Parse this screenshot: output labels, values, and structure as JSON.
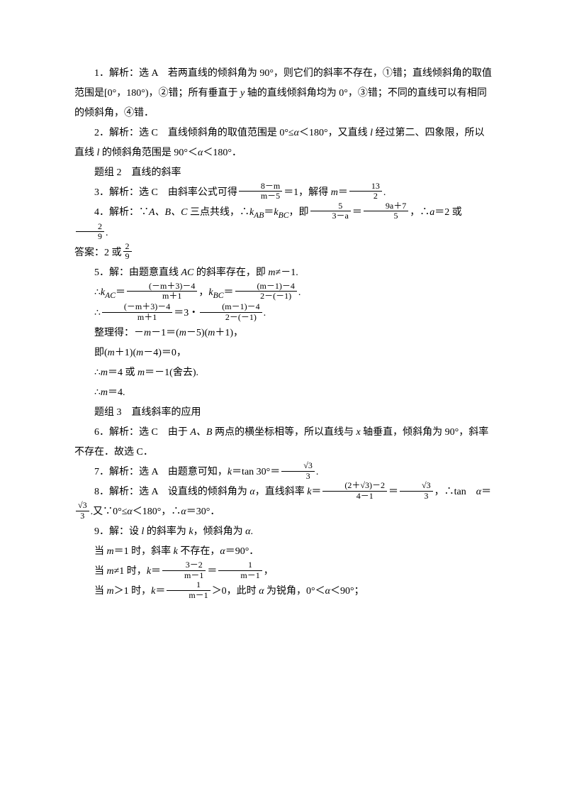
{
  "p1": {
    "a": "1．解析：选 A　若两直线的倾斜角为 90°，则它们的斜率不存在，①错；直线倾斜角的取值范围是[0°，180°)，②错；所有垂直于 ",
    "b": "y",
    "c": " 轴的直线倾斜角均为 0°，③错；不同的直线可以有相同的倾斜角，④错．"
  },
  "p2": {
    "a": "2．解析：选 C　直线倾斜角的取值范围是 0°≤",
    "b": "α",
    "c": "＜180°，又直线 ",
    "d": "l",
    "e": " 经过第二、四象限，所以直线 ",
    "f": "l",
    "g": " 的倾斜角范围是 90°＜",
    "h": "α",
    "i": "＜180°．"
  },
  "p3": "题组 2　直线的斜率",
  "p4": {
    "a": "3．解析：选 C　由斜率公式可得",
    "num1": "8－m",
    "den1": "m－5",
    "b": "＝1，解得 ",
    "c": "m",
    "d": "＝",
    "num2": "13",
    "den2": "2",
    "e": "."
  },
  "p5": {
    "a": "4．解析：∵",
    "b": "A、B、C",
    "c": " 三点共线，∴",
    "d": "k",
    "ab": "AB",
    "e": "＝",
    "f": "k",
    "bc": "BC",
    "g": "，即",
    "num1": "5",
    "den1": "3－a",
    "h": "＝",
    "num2": "9a＋7",
    "den2": "5",
    "i": "，∴",
    "j": "a",
    "k": "＝2 或",
    "num3": "2",
    "den3": "9",
    "l": "."
  },
  "p6": {
    "a": "答案：2 或",
    "num": "2",
    "den": "9"
  },
  "p7": {
    "a": "5．解：由题意直线 ",
    "b": "AC",
    "c": " 的斜率存在，即 ",
    "d": "m",
    "e": "≠－1."
  },
  "p8": {
    "a": "∴",
    "b": "k",
    "ac": "AC",
    "c": "＝",
    "num1": "(－m＋3)－4",
    "den1": "m＋1",
    "d": "，",
    "e": "k",
    "bc": "BC",
    "f": "＝",
    "num2": "(m－1)－4",
    "den2": "2－(－1)",
    "g": "."
  },
  "p9": {
    "a": "∴",
    "num1": "(－m＋3)－4",
    "den1": "m＋1",
    "b": "＝3・",
    "num2": "(m－1)－4",
    "den2": "2－(－1)",
    "c": "."
  },
  "p10": {
    "a": "整理得：－",
    "b": "m",
    "c": "－1＝(",
    "d": "m",
    "e": "－5)(",
    "f": "m",
    "g": "＋1)，"
  },
  "p11": {
    "a": "即(",
    "b": "m",
    "c": "＋1)(",
    "d": "m",
    "e": "－4)＝0，"
  },
  "p12": {
    "a": "∴",
    "b": "m",
    "c": "＝4 或 ",
    "d": "m",
    "e": "＝－1(舍去)."
  },
  "p13": {
    "a": "∴",
    "b": "m",
    "c": "＝4."
  },
  "p14": "题组 3　直线斜率的应用",
  "p15": {
    "a": "6．解析：选 C　由于 ",
    "b": "A、B",
    "c": " 两点的横坐标相等，所以直线与 ",
    "d": "x",
    "e": " 轴垂直，倾斜角为 90°，斜率不存在．故选 C．"
  },
  "p16": {
    "a": "7．解析：选 A　由题意可知，",
    "b": "k",
    "c": "＝tan 30°＝",
    "num": "√3",
    "den": "3",
    "d": "."
  },
  "p17": {
    "a": "8．解析：选 A　设直线的倾斜角为 ",
    "b": "α",
    "c": "，直线斜率 ",
    "d": "k",
    "e": "＝",
    "num1": "(2＋√3)－2",
    "den1": "4－1",
    "f": "＝",
    "num2": "√3",
    "den2": "3",
    "g": "，∴tan　",
    "h": "α",
    "i": "＝"
  },
  "p17b": {
    "num": "√3",
    "den": "3",
    "a": ".又∵0°≤",
    "b": "α",
    "c": "＜180°，∴",
    "d": "α",
    "e": "＝30°．"
  },
  "p18": {
    "a": "9．解：设 ",
    "b": "l",
    "c": " 的斜率为 ",
    "d": "k",
    "e": "，倾斜角为 ",
    "f": "α",
    "g": "."
  },
  "p19": {
    "a": "当 ",
    "b": "m",
    "c": "＝1 时，斜率 ",
    "d": "k",
    "e": " 不存在，",
    "f": "α",
    "g": "＝90°．"
  },
  "p20": {
    "a": "当 ",
    "b": "m",
    "c": "≠1 时，",
    "d": "k",
    "e": "＝",
    "num1": "3－2",
    "den1": "m－1",
    "f": "＝",
    "num2": "1",
    "den2": "m－1",
    "g": "，"
  },
  "p21": {
    "a": "当 ",
    "b": "m",
    "c": "＞1 时，",
    "d": "k",
    "e": "＝",
    "num": "1",
    "den": "m－1",
    "f": "＞0，此时 ",
    "g": "α",
    "h": " 为锐角，0°＜",
    "i": "α",
    "j": "＜90°；"
  }
}
